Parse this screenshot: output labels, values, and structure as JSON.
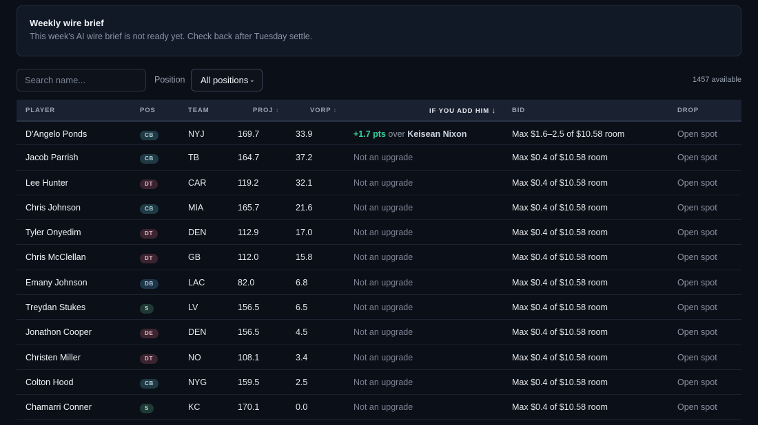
{
  "brief": {
    "title": "Weekly wire brief",
    "message": "This week's AI wire brief is not ready yet. Check back after Tuesday settle."
  },
  "controls": {
    "search_placeholder": "Search name...",
    "position_label": "Position",
    "position_selected": "All positions",
    "available_text": "1457 available"
  },
  "columns": {
    "player": "PLAYER",
    "pos": "POS",
    "team": "TEAM",
    "proj": "PROJ",
    "vorp": "VORP",
    "add": "IF YOU ADD HIM",
    "bid": "BID",
    "drop": "DROP"
  },
  "icons": {
    "sort": "sort-icon",
    "sorted_desc": "arrow-down-icon",
    "select": "chevron-down-icon"
  },
  "colors": {
    "upgrade": "#34d399"
  },
  "rows": [
    {
      "player": "D'Angelo Ponds",
      "pos": "CB",
      "team": "NYJ",
      "proj": "169.7",
      "vorp": "33.9",
      "add_gain": "+1.7 pts",
      "add_over": "over",
      "add_name": "Keisean Nixon",
      "bid": "Max $1.6–2.5 of $10.58 room",
      "drop": "Open spot"
    },
    {
      "player": "Jacob Parrish",
      "pos": "CB",
      "team": "TB",
      "proj": "164.7",
      "vorp": "37.2",
      "add_text": "Not an upgrade",
      "bid": "Max $0.4 of $10.58 room",
      "drop": "Open spot"
    },
    {
      "player": "Lee Hunter",
      "pos": "DT",
      "team": "CAR",
      "proj": "119.2",
      "vorp": "32.1",
      "add_text": "Not an upgrade",
      "bid": "Max $0.4 of $10.58 room",
      "drop": "Open spot"
    },
    {
      "player": "Chris Johnson",
      "pos": "CB",
      "team": "MIA",
      "proj": "165.7",
      "vorp": "21.6",
      "add_text": "Not an upgrade",
      "bid": "Max $0.4 of $10.58 room",
      "drop": "Open spot"
    },
    {
      "player": "Tyler Onyedim",
      "pos": "DT",
      "team": "DEN",
      "proj": "112.9",
      "vorp": "17.0",
      "add_text": "Not an upgrade",
      "bid": "Max $0.4 of $10.58 room",
      "drop": "Open spot"
    },
    {
      "player": "Chris McClellan",
      "pos": "DT",
      "team": "GB",
      "proj": "112.0",
      "vorp": "15.8",
      "add_text": "Not an upgrade",
      "bid": "Max $0.4 of $10.58 room",
      "drop": "Open spot"
    },
    {
      "player": "Emany Johnson",
      "pos": "DB",
      "team": "LAC",
      "proj": "82.0",
      "vorp": "6.8",
      "add_text": "Not an upgrade",
      "bid": "Max $0.4 of $10.58 room",
      "drop": "Open spot"
    },
    {
      "player": "Treydan Stukes",
      "pos": "S",
      "team": "LV",
      "proj": "156.5",
      "vorp": "6.5",
      "add_text": "Not an upgrade",
      "bid": "Max $0.4 of $10.58 room",
      "drop": "Open spot"
    },
    {
      "player": "Jonathon Cooper",
      "pos": "DE",
      "team": "DEN",
      "proj": "156.5",
      "vorp": "4.5",
      "add_text": "Not an upgrade",
      "bid": "Max $0.4 of $10.58 room",
      "drop": "Open spot"
    },
    {
      "player": "Christen Miller",
      "pos": "DT",
      "team": "NO",
      "proj": "108.1",
      "vorp": "3.4",
      "add_text": "Not an upgrade",
      "bid": "Max $0.4 of $10.58 room",
      "drop": "Open spot"
    },
    {
      "player": "Colton Hood",
      "pos": "CB",
      "team": "NYG",
      "proj": "159.5",
      "vorp": "2.5",
      "add_text": "Not an upgrade",
      "bid": "Max $0.4 of $10.58 room",
      "drop": "Open spot"
    },
    {
      "player": "Chamarri Conner",
      "pos": "S",
      "team": "KC",
      "proj": "170.1",
      "vorp": "0.0",
      "add_text": "Not an upgrade",
      "bid": "Max $0.4 of $10.58 room",
      "drop": "Open spot"
    }
  ]
}
